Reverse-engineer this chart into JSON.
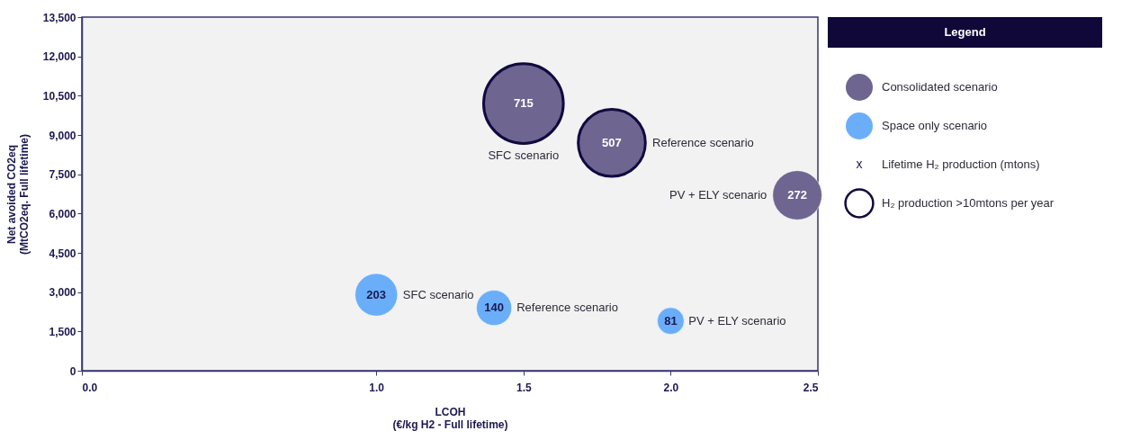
{
  "chart_data": {
    "type": "bubble",
    "xlabel": "LCOH\n(€/kg H2 - Full lifetime)",
    "ylabel": "Net avoided CO2eq\n(MtCO2eq. Full lifetime)",
    "legend_title": "Legend",
    "legend": "right",
    "xlim": [
      0,
      2.5
    ],
    "xticks": [
      {
        "value": 0,
        "label": "0.0"
      },
      {
        "value": 1,
        "label": "1.0"
      },
      {
        "value": 1.5,
        "label": "1.5"
      },
      {
        "value": 2,
        "label": "2.0"
      },
      {
        "value": 2.5,
        "label": "2.5"
      }
    ],
    "ylim": [
      0,
      13500
    ],
    "yticks": [
      {
        "value": 0,
        "label": "0"
      },
      {
        "value": 1500,
        "label": "1,500"
      },
      {
        "value": 3000,
        "label": "3,000"
      },
      {
        "value": 4500,
        "label": "4,500"
      },
      {
        "value": 6000,
        "label": "6,000"
      },
      {
        "value": 7500,
        "label": "7,500"
      },
      {
        "value": 9000,
        "label": "9,000"
      },
      {
        "value": 10500,
        "label": "10,500"
      },
      {
        "value": 12000,
        "label": "12,000"
      },
      {
        "value": 13500,
        "label": "13,500"
      }
    ],
    "grid": false,
    "series": [
      {
        "name": "Consolidated scenario",
        "color": "#6e6690",
        "x": [
          1.5,
          1.8,
          2.43
        ],
        "values": [
          10200,
          8700,
          6700
        ],
        "sizes": [
          715,
          507,
          272
        ],
        "value_labels": [
          "715",
          "507",
          "272"
        ]
      },
      {
        "name": "Space only scenario",
        "color": "#6aaefa",
        "x": [
          1.0,
          1.4,
          2.0
        ],
        "values": [
          2900,
          2400,
          1900
        ],
        "sizes": [
          203,
          140,
          81
        ],
        "value_labels": [
          "203",
          "140",
          "81"
        ]
      },
      {
        "name": "H₂ production >10mtons per year",
        "type": "scatter",
        "color": "#100a40",
        "x": [
          1.5,
          1.8
        ],
        "values": [
          10200,
          8700
        ]
      }
    ],
    "annotations": [
      "SFC scenario",
      "Reference scenario",
      "PV + ELY scenario",
      "SFC scenario",
      "Reference scenario",
      "PV + ELY scenario",
      "x",
      "Lifetime H₂ production (mtons)"
    ]
  }
}
